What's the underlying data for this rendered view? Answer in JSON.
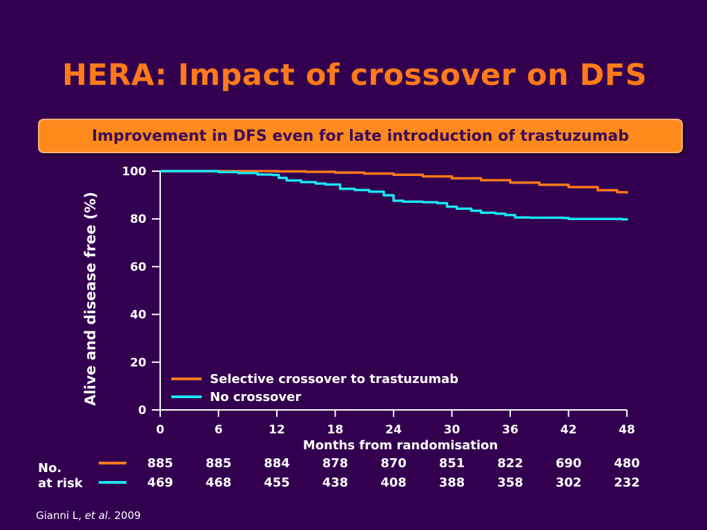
{
  "slide": {
    "title": "HERA: Impact of crossover on DFS",
    "banner": "Improvement in DFS even for late introduction of trastuzumab",
    "citation_author": "Gianni L, ",
    "citation_etal": "et al.",
    "citation_year": " 2009"
  },
  "colors": {
    "background": "#330050",
    "title": "#ff7a1a",
    "banner_fill": "#ff8a1c",
    "banner_text": "#3b0a5a",
    "selective_crossover": "#ff7a1a",
    "no_crossover": "#19e6f5"
  },
  "chart_data": {
    "type": "line",
    "title": "",
    "xlabel": "Months from randomisation",
    "ylabel": "Alive and disease free (%)",
    "xlim": [
      0,
      48
    ],
    "ylim": [
      0,
      100
    ],
    "x_ticks": [
      0,
      6,
      12,
      18,
      24,
      30,
      36,
      42,
      48
    ],
    "y_ticks": [
      0,
      20,
      40,
      60,
      80,
      100
    ],
    "grid": false,
    "legend_position": "bottom-left",
    "series": [
      {
        "name": "Selective crossover to trastuzumab",
        "color": "#ff7a1a",
        "points": [
          [
            0,
            100
          ],
          [
            6,
            100
          ],
          [
            12,
            99.9
          ],
          [
            15,
            99.7
          ],
          [
            18,
            99.4
          ],
          [
            21,
            99.0
          ],
          [
            24,
            98.5
          ],
          [
            27,
            97.8
          ],
          [
            30,
            97.0
          ],
          [
            33,
            96.2
          ],
          [
            36,
            95.2
          ],
          [
            39,
            94.3
          ],
          [
            42,
            93.3
          ],
          [
            45,
            92.0
          ],
          [
            47,
            91.2
          ],
          [
            48,
            90.6
          ]
        ]
      },
      {
        "name": "No crossover",
        "color": "#19e6f5",
        "points": [
          [
            0,
            100
          ],
          [
            4.5,
            100
          ],
          [
            6,
            99.6
          ],
          [
            8,
            99.2
          ],
          [
            10,
            98.6
          ],
          [
            11.5,
            98.4
          ],
          [
            12.2,
            97.2
          ],
          [
            13,
            96.1
          ],
          [
            14.5,
            95.4
          ],
          [
            16,
            94.8
          ],
          [
            17,
            94.4
          ],
          [
            18.5,
            92.6
          ],
          [
            20,
            92.1
          ],
          [
            21.5,
            91.4
          ],
          [
            23,
            89.9
          ],
          [
            24,
            87.6
          ],
          [
            25,
            87.2
          ],
          [
            27,
            87.0
          ],
          [
            28.5,
            86.6
          ],
          [
            29.5,
            85.1
          ],
          [
            30.5,
            84.3
          ],
          [
            32,
            83.4
          ],
          [
            33,
            82.6
          ],
          [
            34.5,
            82.2
          ],
          [
            35.5,
            81.6
          ],
          [
            36.5,
            80.6
          ],
          [
            38,
            80.5
          ],
          [
            41.5,
            80.4
          ],
          [
            42,
            80.0
          ],
          [
            47.5,
            79.8
          ],
          [
            48,
            79.4
          ]
        ]
      }
    ]
  },
  "at_risk": {
    "label_line1": "No.",
    "label_line2": "at risk",
    "months": [
      0,
      6,
      12,
      18,
      24,
      30,
      36,
      42,
      48
    ],
    "selective_crossover": [
      "885",
      "885",
      "884",
      "878",
      "870",
      "851",
      "822",
      "690",
      "480"
    ],
    "no_crossover": [
      "469",
      "468",
      "455",
      "438",
      "408",
      "388",
      "358",
      "302",
      "232"
    ]
  }
}
